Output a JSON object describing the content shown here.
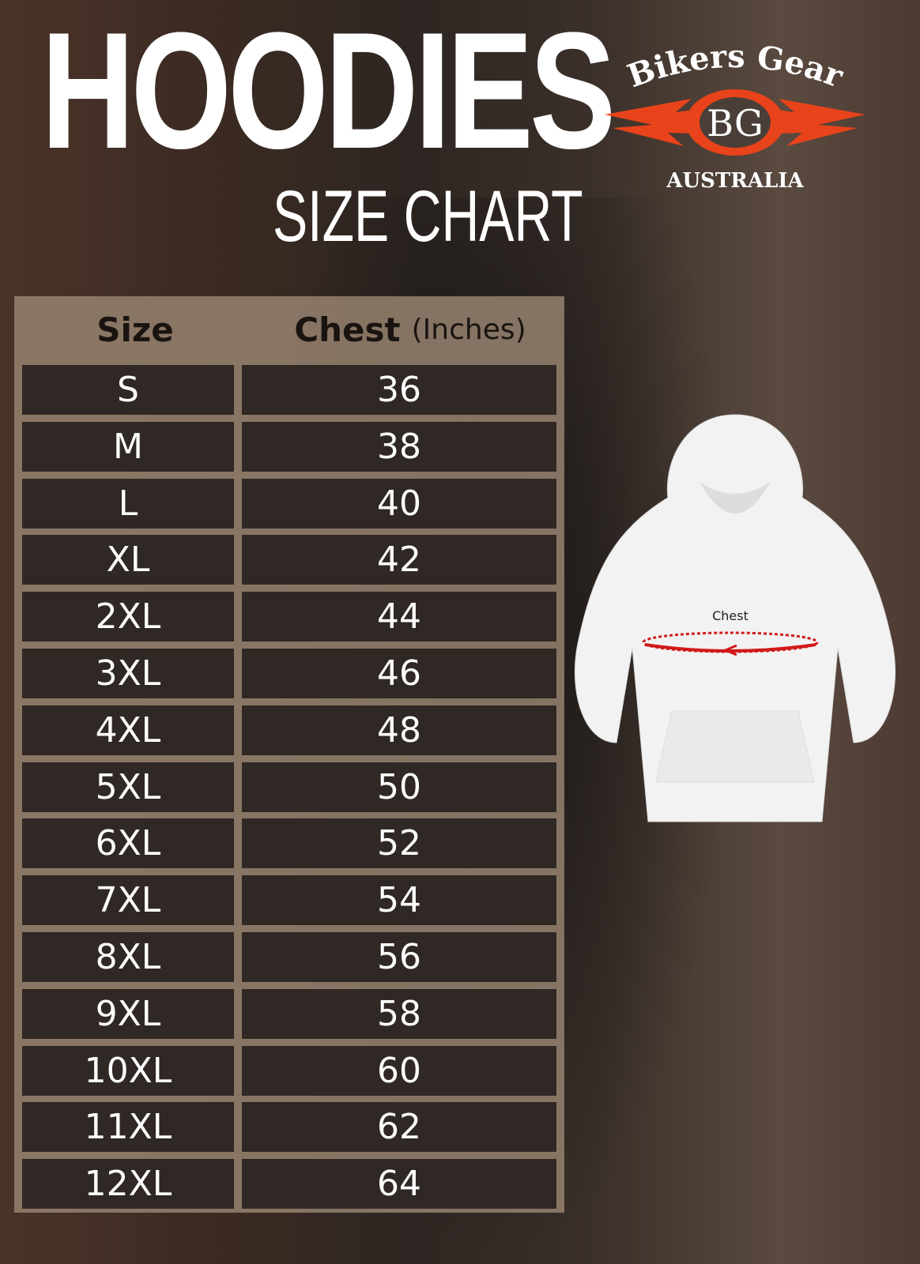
{
  "title": "HOODIES",
  "subtitle": "SIZE CHART",
  "logo": {
    "top": "Bikers Gear",
    "monogram": "BG",
    "bottom": "AUSTRALIA",
    "flame_color": "#e8431a"
  },
  "table": {
    "headers": {
      "size": "Size",
      "chest": "Chest",
      "chest_unit": "(Inches)"
    },
    "rows": [
      {
        "size": "S",
        "chest": "36"
      },
      {
        "size": "M",
        "chest": "38"
      },
      {
        "size": "L",
        "chest": "40"
      },
      {
        "size": "XL",
        "chest": "42"
      },
      {
        "size": "2XL",
        "chest": "44"
      },
      {
        "size": "3XL",
        "chest": "46"
      },
      {
        "size": "4XL",
        "chest": "48"
      },
      {
        "size": "5XL",
        "chest": "50"
      },
      {
        "size": "6XL",
        "chest": "52"
      },
      {
        "size": "7XL",
        "chest": "54"
      },
      {
        "size": "8XL",
        "chest": "56"
      },
      {
        "size": "9XL",
        "chest": "58"
      },
      {
        "size": "10XL",
        "chest": "60"
      },
      {
        "size": "11XL",
        "chest": "62"
      },
      {
        "size": "12XL",
        "chest": "64"
      }
    ]
  },
  "illustration": {
    "label": "Chest",
    "measure_color": "#d11a1a"
  }
}
